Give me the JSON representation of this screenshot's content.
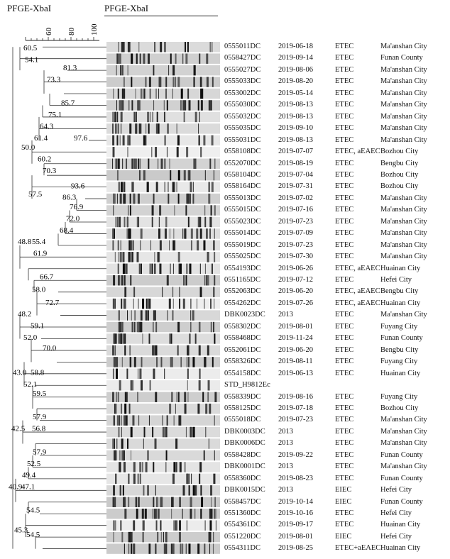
{
  "header_left": "PFGE-XbaI",
  "header_right": "PFGE-XbaI",
  "scale_ticks": [
    "60",
    "80",
    "100"
  ],
  "dendrogram_values": [
    "60.5",
    "54.1",
    "81.3",
    "73.3",
    "85.7",
    "75.1",
    "64.3",
    "61.4",
    "97.6",
    "50.0",
    "60.2",
    "70.3",
    "57.5",
    "93.6",
    "86.3",
    "76.9",
    "72.0",
    "68.4",
    "48.8",
    "55.4",
    "61.9",
    "66.7",
    "58.0",
    "72.7",
    "48.2",
    "59.1",
    "52.0",
    "70.0",
    "43.0",
    "58.8",
    "52.1",
    "59.5",
    "57.9",
    "42.5",
    "56.8",
    "57.9",
    "52.5",
    "49.4",
    "40.9",
    "47.1",
    "54.5",
    "45.3",
    "54.5"
  ],
  "rows": [
    {
      "id": "0555011DC",
      "date": "2019-06-18",
      "type": "ETEC",
      "location": "Ma'anshan City"
    },
    {
      "id": "0558427DC",
      "date": "2019-09-14",
      "type": "ETEC",
      "location": "Funan County"
    },
    {
      "id": "0555027DC",
      "date": "2019-08-06",
      "type": "ETEC",
      "location": "Ma'anshan City"
    },
    {
      "id": "0555033DC",
      "date": "2019-08-20",
      "type": "ETEC",
      "location": "Ma'anshan City"
    },
    {
      "id": "0553002DC",
      "date": "2019-05-14",
      "type": "ETEC",
      "location": "Ma'anshan City"
    },
    {
      "id": "0555030DC",
      "date": "2019-08-13",
      "type": "ETEC",
      "location": "Ma'anshan City"
    },
    {
      "id": "0555032DC",
      "date": "2019-08-13",
      "type": "ETEC",
      "location": "Ma'anshan City"
    },
    {
      "id": "0555035DC",
      "date": "2019-09-10",
      "type": "ETEC",
      "location": "Ma'anshan City"
    },
    {
      "id": "0555031DC",
      "date": "2019-08-13",
      "type": "ETEC",
      "location": "Ma'anshan City"
    },
    {
      "id": "0558108DC",
      "date": "2019-07-07",
      "type": "ETEC, aEAEC",
      "location": "Bozhou City"
    },
    {
      "id": "0552070DC",
      "date": "2019-08-19",
      "type": "ETEC",
      "location": "Bengbu City"
    },
    {
      "id": "0558104DC",
      "date": "2019-07-04",
      "type": "ETEC",
      "location": "Bozhou City"
    },
    {
      "id": "0558164DC",
      "date": "2019-07-31",
      "type": "ETEC",
      "location": "Bozhou City"
    },
    {
      "id": "0555013DC",
      "date": "2019-07-02",
      "type": "ETEC",
      "location": "Ma'anshan City"
    },
    {
      "id": "0555015DC",
      "date": "2019-07-16",
      "type": "ETEC",
      "location": "Ma'anshan City"
    },
    {
      "id": "0555023DC",
      "date": "2019-07-23",
      "type": "ETEC",
      "location": "Ma'anshan City"
    },
    {
      "id": "0555014DC",
      "date": "2019-07-09",
      "type": "ETEC",
      "location": "Ma'anshan City"
    },
    {
      "id": "0555019DC",
      "date": "2019-07-23",
      "type": "ETEC",
      "location": "Ma'anshan City"
    },
    {
      "id": "0555025DC",
      "date": "2019-07-30",
      "type": "ETEC",
      "location": "Ma'anshan City"
    },
    {
      "id": "0554193DC",
      "date": "2019-06-26",
      "type": "ETEC, aEAEC",
      "location": "Huainan City"
    },
    {
      "id": "0551165DC",
      "date": "2019-07-12",
      "type": "ETEC",
      "location": "Hefei City"
    },
    {
      "id": "0552063DC",
      "date": "2019-06-20",
      "type": "ETEC, aEAEC",
      "location": "Bengbu City"
    },
    {
      "id": "0554262DC",
      "date": "2019-07-26",
      "type": "ETEC, aEAEC",
      "location": "Huainan City"
    },
    {
      "id": "DBK0023DC",
      "date": "2013",
      "type": "ETEC",
      "location": "Ma'anshan City"
    },
    {
      "id": "0558302DC",
      "date": "2019-08-01",
      "type": "ETEC",
      "location": "Fuyang City"
    },
    {
      "id": "0558468DC",
      "date": "2019-11-24",
      "type": "ETEC",
      "location": "Funan County"
    },
    {
      "id": "0552061DC",
      "date": "2019-06-20",
      "type": "ETEC",
      "location": "Bengbu City"
    },
    {
      "id": "0558326DC",
      "date": "2019-08-11",
      "type": "ETEC",
      "location": "Fuyang City"
    },
    {
      "id": "0554158DC",
      "date": "2019-06-13",
      "type": "ETEC",
      "location": "Huainan City"
    },
    {
      "id": "STD_H9812Ec",
      "date": "",
      "type": "",
      "location": ""
    },
    {
      "id": "0558339DC",
      "date": "2019-08-16",
      "type": "ETEC",
      "location": "Fuyang City"
    },
    {
      "id": "0558125DC",
      "date": "2019-07-18",
      "type": "ETEC",
      "location": "Bozhou City"
    },
    {
      "id": "0555018DC",
      "date": "2019-07-23",
      "type": "ETEC",
      "location": "Ma'anshan City"
    },
    {
      "id": "DBK0003DC",
      "date": "2013",
      "type": "ETEC",
      "location": "Ma'anshan City"
    },
    {
      "id": "DBK0006DC",
      "date": "2013",
      "type": "ETEC",
      "location": "Ma'anshan City"
    },
    {
      "id": "0558428DC",
      "date": "2019-09-22",
      "type": "ETEC",
      "location": "Funan County"
    },
    {
      "id": "DBK0001DC",
      "date": "2013",
      "type": "ETEC",
      "location": "Ma'anshan City"
    },
    {
      "id": "0558360DC",
      "date": "2019-08-23",
      "type": "ETEC",
      "location": "Funan County"
    },
    {
      "id": "DBK0015DC",
      "date": "2013",
      "type": "EIEC",
      "location": "Hefei City"
    },
    {
      "id": "0558457DC",
      "date": "2019-10-14",
      "type": "EIEC",
      "location": "Funan County"
    },
    {
      "id": "0551360DC",
      "date": "2019-10-16",
      "type": "ETEC",
      "location": "Hefei City"
    },
    {
      "id": "0554361DC",
      "date": "2019-09-17",
      "type": "ETEC",
      "location": "Huainan City"
    },
    {
      "id": "0551220DC",
      "date": "2019-08-01",
      "type": "EIEC",
      "location": "Hefei City"
    },
    {
      "id": "0554311DC",
      "date": "2019-08-25",
      "type": "ETEC+aEAEC",
      "location": "Huainan City"
    }
  ]
}
